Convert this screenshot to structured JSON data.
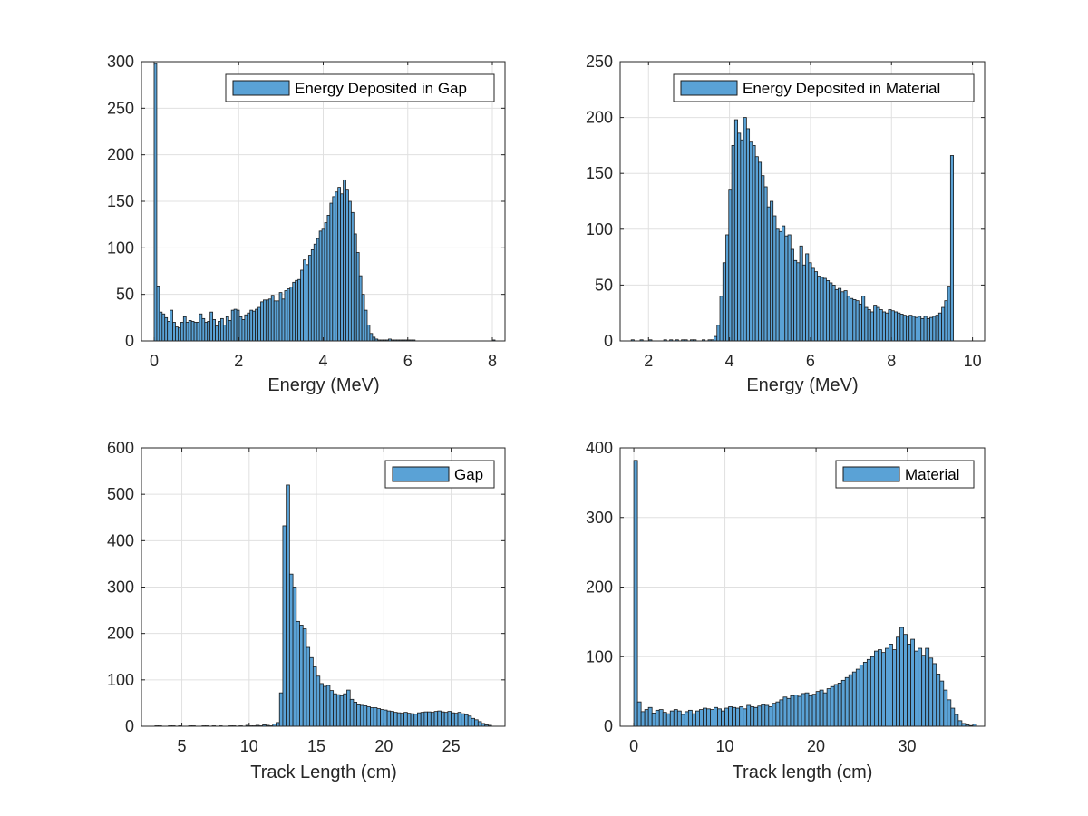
{
  "colors": {
    "bar_fill": "#5aa2d6",
    "bar_edge": "#1a1a1a",
    "grid": "#e0e0e0",
    "axis": "#262626"
  },
  "chart_data": [
    {
      "type": "bar",
      "title": "",
      "xlabel": "Energy (MeV)",
      "ylabel": "",
      "legend": "Energy Deposited in Gap",
      "legend_position": "top-right",
      "grid": true,
      "xlim": [
        -0.3,
        8.3
      ],
      "ylim": [
        0,
        300
      ],
      "xticks": [
        0,
        2,
        4,
        6,
        8
      ],
      "yticks": [
        0,
        50,
        100,
        150,
        200,
        250,
        300
      ],
      "bin_start": 0,
      "bin_width": 0.063,
      "values": [
        298,
        59,
        31,
        29,
        25,
        21,
        33,
        20,
        15,
        14,
        20,
        26,
        20,
        22,
        21,
        20,
        20,
        29,
        24,
        20,
        21,
        31,
        23,
        16,
        21,
        24,
        17,
        26,
        22,
        33,
        34,
        33,
        26,
        23,
        28,
        30,
        33,
        32,
        34,
        36,
        42,
        44,
        44,
        45,
        49,
        43,
        43,
        52,
        45,
        54,
        56,
        58,
        63,
        65,
        66,
        76,
        87,
        82,
        92,
        98,
        104,
        110,
        118,
        120,
        127,
        135,
        148,
        155,
        160,
        165,
        158,
        173,
        162,
        150,
        138,
        115,
        95,
        70,
        50,
        33,
        17,
        8,
        4,
        2,
        1,
        1,
        1,
        1,
        2,
        1,
        1,
        1,
        1,
        1,
        1,
        1,
        1,
        1,
        0,
        0,
        0,
        0,
        0,
        0,
        0,
        0,
        0,
        0,
        0,
        0,
        0,
        0,
        0,
        0,
        0,
        0,
        0,
        0,
        0,
        0,
        0,
        0,
        0,
        0,
        0,
        0,
        0,
        1
      ]
    },
    {
      "type": "bar",
      "title": "",
      "xlabel": "Energy (MeV)",
      "ylabel": "",
      "legend": "Energy Deposited in Material",
      "legend_position": "top-right",
      "grid": true,
      "xlim": [
        1.3,
        10.3
      ],
      "ylim": [
        0,
        250
      ],
      "xticks": [
        2,
        4,
        6,
        8,
        10
      ],
      "yticks": [
        0,
        50,
        100,
        150,
        200,
        250
      ],
      "bin_start": 1.5,
      "bin_width": 0.073,
      "values": [
        0,
        1,
        0,
        0,
        1,
        0,
        0,
        1,
        0,
        0,
        0,
        0,
        1,
        0,
        1,
        0,
        1,
        0,
        1,
        1,
        0,
        1,
        1,
        0,
        0,
        1,
        0,
        1,
        1,
        4,
        14,
        40,
        70,
        95,
        135,
        175,
        198,
        186,
        180,
        200,
        190,
        178,
        175,
        165,
        160,
        148,
        138,
        120,
        125,
        112,
        100,
        98,
        103,
        94,
        95,
        82,
        72,
        70,
        85,
        68,
        78,
        70,
        65,
        62,
        58,
        57,
        56,
        54,
        52,
        50,
        46,
        47,
        44,
        45,
        40,
        38,
        37,
        36,
        33,
        40,
        30,
        28,
        26,
        32,
        30,
        28,
        26,
        25,
        28,
        27,
        26,
        25,
        24,
        23,
        22,
        23,
        22,
        21,
        22,
        20,
        22,
        20,
        21,
        22,
        23,
        25,
        30,
        36,
        49,
        166
      ]
    },
    {
      "type": "bar",
      "title": "",
      "xlabel": "Track Length (cm)",
      "ylabel": "",
      "legend": "Gap",
      "legend_position": "top-right",
      "grid": true,
      "xlim": [
        2,
        29
      ],
      "ylim": [
        0,
        600
      ],
      "xticks": [
        5,
        10,
        15,
        20,
        25
      ],
      "yticks": [
        0,
        100,
        200,
        300,
        400,
        500,
        600
      ],
      "bin_start": 3,
      "bin_width": 0.25,
      "values": [
        1,
        1,
        0,
        0,
        1,
        1,
        0,
        1,
        0,
        0,
        1,
        1,
        0,
        0,
        1,
        1,
        0,
        1,
        0,
        1,
        0,
        0,
        1,
        1,
        0,
        1,
        0,
        2,
        1,
        1,
        2,
        1,
        3,
        2,
        1,
        5,
        8,
        72,
        432,
        520,
        328,
        300,
        226,
        218,
        210,
        170,
        148,
        128,
        108,
        92,
        86,
        88,
        77,
        70,
        68,
        66,
        70,
        78,
        58,
        52,
        46,
        45,
        44,
        42,
        40,
        40,
        38,
        36,
        35,
        33,
        32,
        30,
        29,
        28,
        30,
        28,
        27,
        26,
        29,
        30,
        31,
        31,
        30,
        32,
        33,
        31,
        30,
        32,
        29,
        28,
        30,
        27,
        25,
        22,
        17,
        14,
        10,
        6,
        3,
        2
      ]
    },
    {
      "type": "bar",
      "title": "",
      "xlabel": "Track length (cm)",
      "ylabel": "",
      "legend": "Material",
      "legend_position": "top-right",
      "grid": true,
      "xlim": [
        -1.5,
        38.5
      ],
      "ylim": [
        0,
        400
      ],
      "xticks": [
        0,
        10,
        20,
        30
      ],
      "yticks": [
        0,
        100,
        200,
        300,
        400
      ],
      "bin_start": 0,
      "bin_width": 0.4,
      "values": [
        382,
        35,
        21,
        24,
        27,
        19,
        23,
        24,
        20,
        18,
        22,
        24,
        22,
        17,
        21,
        23,
        18,
        22,
        24,
        26,
        25,
        24,
        27,
        25,
        22,
        26,
        28,
        27,
        26,
        28,
        25,
        30,
        28,
        27,
        29,
        31,
        30,
        28,
        33,
        35,
        38,
        42,
        40,
        44,
        45,
        43,
        47,
        48,
        44,
        46,
        50,
        52,
        48,
        54,
        57,
        60,
        62,
        66,
        70,
        74,
        78,
        82,
        88,
        92,
        96,
        100,
        108,
        110,
        106,
        112,
        118,
        110,
        128,
        142,
        132,
        118,
        125,
        108,
        112,
        102,
        112,
        98,
        90,
        75,
        65,
        52,
        38,
        26,
        17,
        8,
        4,
        2,
        1,
        3
      ]
    }
  ]
}
